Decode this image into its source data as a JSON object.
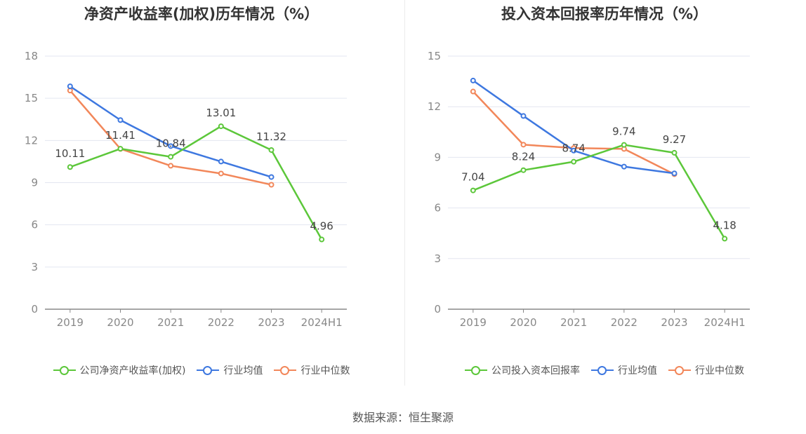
{
  "chart_data": [
    {
      "type": "line",
      "title": "净资产收益率(加权)历年情况（%）",
      "categories": [
        "2019",
        "2020",
        "2021",
        "2022",
        "2023",
        "2024H1"
      ],
      "ylim": [
        0,
        18
      ],
      "yticks": [
        0,
        3,
        6,
        9,
        12,
        15,
        18
      ],
      "grid": true,
      "legend_position": "bottom",
      "series": [
        {
          "name": "公司净资产收益率(加权)",
          "color": "#5cc73a",
          "values": [
            10.11,
            11.41,
            10.84,
            13.01,
            11.32,
            4.96
          ],
          "labels": [
            "10.11",
            "11.41",
            "10.84",
            "13.01",
            "11.32",
            "4.96"
          ]
        },
        {
          "name": "行业均值",
          "color": "#3e78e0",
          "values": [
            15.85,
            13.45,
            11.6,
            10.5,
            9.4,
            null
          ]
        },
        {
          "name": "行业中位数",
          "color": "#f2875a",
          "values": [
            15.55,
            11.4,
            10.2,
            9.65,
            8.85,
            null
          ]
        }
      ]
    },
    {
      "type": "line",
      "title": "投入资本回报率历年情况（%）",
      "categories": [
        "2019",
        "2020",
        "2021",
        "2022",
        "2023",
        "2024H1"
      ],
      "ylim": [
        0,
        15
      ],
      "yticks": [
        0,
        3,
        6,
        9,
        12,
        15
      ],
      "grid": true,
      "legend_position": "bottom",
      "series": [
        {
          "name": "公司投入资本回报率",
          "color": "#5cc73a",
          "values": [
            7.04,
            8.24,
            8.74,
            9.74,
            9.27,
            4.18
          ],
          "labels": [
            "7.04",
            "8.24",
            "8.74",
            "9.74",
            "9.27",
            "4.18"
          ]
        },
        {
          "name": "行业均值",
          "color": "#3e78e0",
          "values": [
            13.55,
            11.45,
            9.4,
            8.45,
            8.05,
            null
          ]
        },
        {
          "name": "行业中位数",
          "color": "#f2875a",
          "values": [
            12.9,
            9.75,
            9.55,
            9.5,
            8.0,
            null
          ]
        }
      ]
    }
  ],
  "source_text": "数据来源：恒生聚源"
}
